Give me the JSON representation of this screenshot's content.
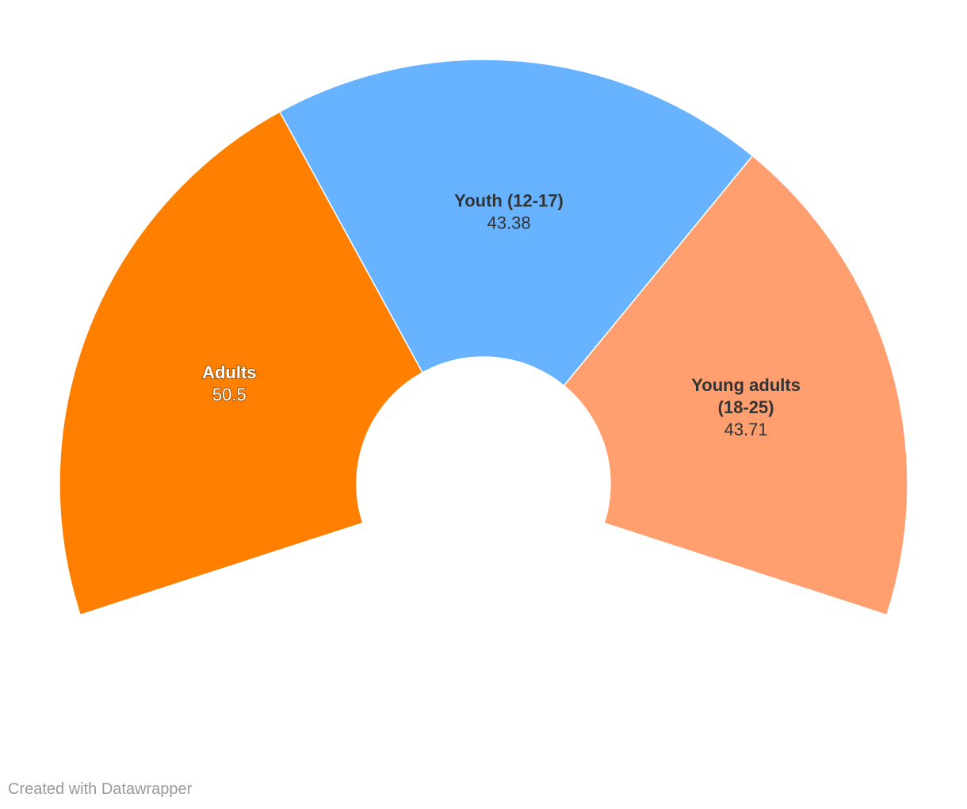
{
  "chart_data": {
    "type": "pie",
    "variant": "partial-donut",
    "total_angle_degrees": 216,
    "start_angle_degrees": -108,
    "categories": [
      "Adults",
      "Youth (12-17)",
      "Young adults (18-25)"
    ],
    "values": [
      50.5,
      43.38,
      43.71
    ],
    "value_labels": [
      "50.5",
      "43.38",
      "43.71"
    ],
    "label_lines": [
      [
        "Adults"
      ],
      [
        "Youth (12-17)"
      ],
      [
        "Young adults",
        "(18-25)"
      ]
    ],
    "colors": [
      "#ff7f00",
      "#67b3ff",
      "#ff9e6e"
    ],
    "label_colors": [
      "#ffffff",
      "#333333",
      "#333333"
    ],
    "title": "",
    "legend": "none"
  },
  "credit": "Created with Datawrapper"
}
